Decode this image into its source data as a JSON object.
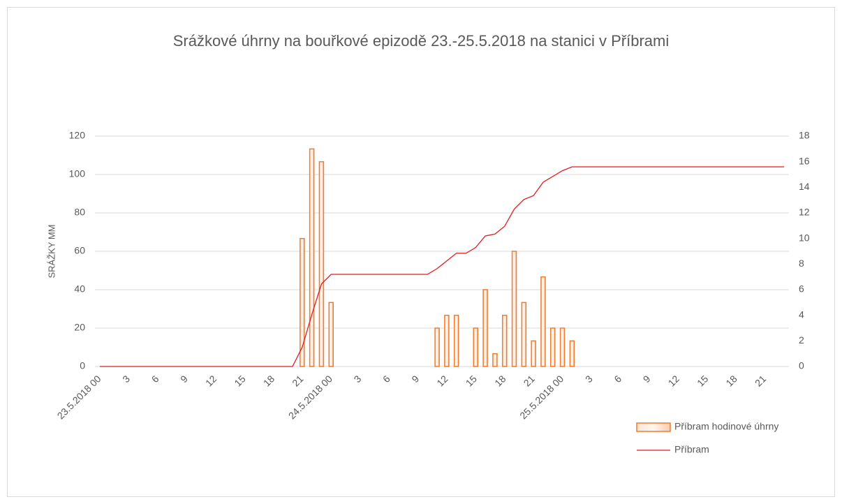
{
  "chart_data": {
    "type": "bar_line",
    "title": "Srážkové úhrny na bouřkové epizodě 23.-25.5.2018 na stanici v Příbrami",
    "y_label": "SRÁŽKY MM",
    "categories": [
      "23.5.2018 00",
      null,
      null,
      "3",
      null,
      null,
      "6",
      null,
      null,
      "9",
      null,
      null,
      "12",
      null,
      null,
      "15",
      null,
      null,
      "18",
      null,
      null,
      "21",
      null,
      null,
      "24.5.2018 00",
      null,
      null,
      "3",
      null,
      null,
      "6",
      null,
      null,
      "9",
      null,
      null,
      "12",
      null,
      null,
      "15",
      null,
      null,
      "18",
      null,
      null,
      "21",
      null,
      null,
      "25.5.2018 00",
      null,
      null,
      "3",
      null,
      null,
      "6",
      null,
      null,
      "9",
      null,
      null,
      "12",
      null,
      null,
      "15",
      null,
      null,
      "18",
      null,
      null,
      "21",
      null,
      null
    ],
    "series": [
      {
        "name": "Příbram hodinové úhrny",
        "kind": "bar",
        "axis": "y2",
        "color": "#ed7d31",
        "values": [
          0,
          0,
          0,
          0,
          0,
          0,
          0,
          0,
          0,
          0,
          0,
          0,
          0,
          0,
          0,
          0,
          0,
          0,
          0,
          0,
          0,
          10,
          17,
          16,
          5,
          0,
          0,
          0,
          0,
          0,
          0,
          0,
          0,
          0,
          0,
          3,
          4,
          4,
          0,
          3,
          6,
          1,
          4,
          9,
          5,
          2,
          7,
          3,
          3,
          2,
          0,
          0,
          0,
          0,
          0,
          0,
          0,
          0,
          0,
          0,
          0,
          0,
          0,
          0,
          0,
          0,
          0,
          0,
          0,
          0,
          0,
          0
        ]
      },
      {
        "name": "Příbram",
        "kind": "line",
        "axis": "y",
        "color": "#e31a1c",
        "values": [
          0,
          0,
          0,
          0,
          0,
          0,
          0,
          0,
          0,
          0,
          0,
          0,
          0,
          0,
          0,
          0,
          0,
          0,
          0,
          0,
          0,
          10,
          27,
          43,
          48,
          48,
          48,
          48,
          48,
          48,
          48,
          48,
          48,
          48,
          48,
          51,
          55,
          59,
          59,
          62,
          68,
          69,
          73,
          82,
          87,
          89,
          96,
          99,
          102,
          104,
          104,
          104,
          104,
          104,
          104,
          104,
          104,
          104,
          104,
          104,
          104,
          104,
          104,
          104,
          104,
          104,
          104,
          104,
          104,
          104,
          104,
          104
        ]
      }
    ],
    "ylim": [
      0,
      120
    ],
    "yticks": [
      0,
      20,
      40,
      60,
      80,
      100,
      120
    ],
    "y2lim": [
      0,
      18
    ],
    "y2ticks": [
      0,
      2,
      4,
      6,
      8,
      10,
      12,
      14,
      16,
      18
    ],
    "grid": true,
    "legend": "bottom-right"
  }
}
